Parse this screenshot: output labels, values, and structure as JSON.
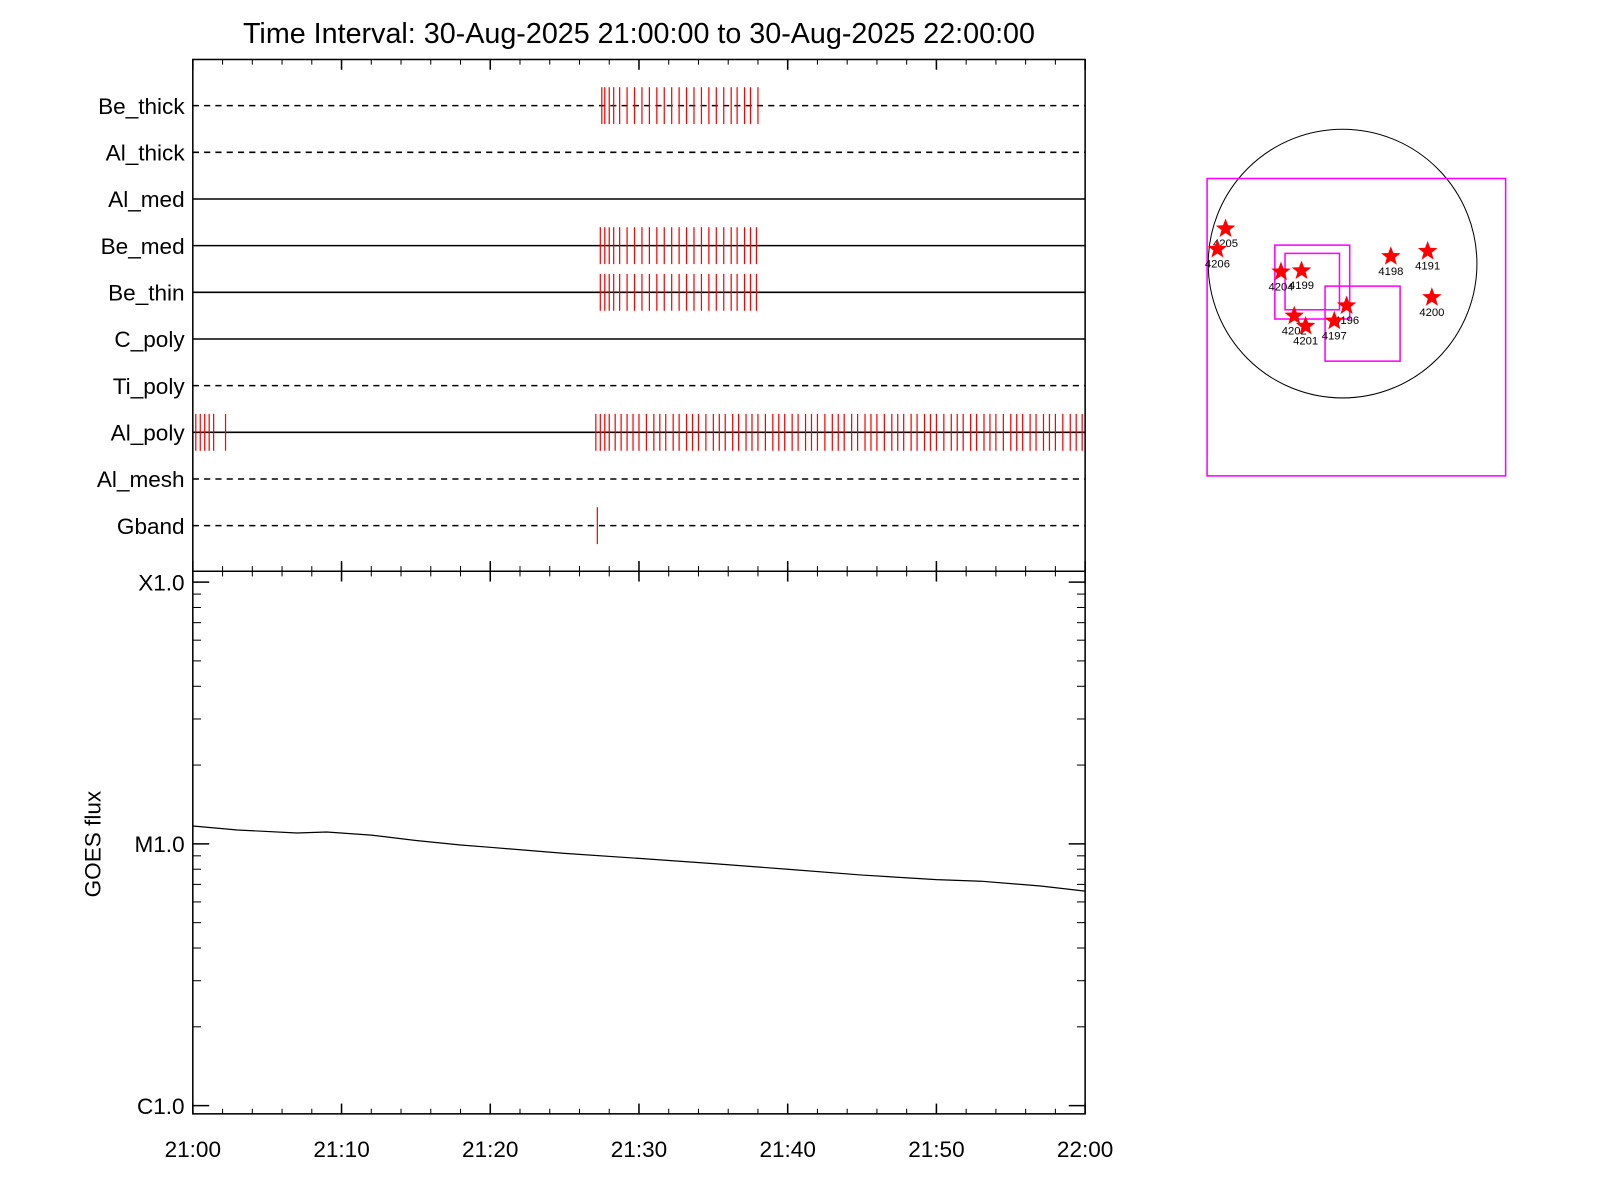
{
  "chart_data": [
    {
      "type": "timeline",
      "title": "Time Interval: 30-Aug-2025 21:00:00 to 30-Aug-2025 22:00:00",
      "categories": [
        "Be_thick",
        "Al_thick",
        "Al_med",
        "Be_med",
        "Be_thin",
        "C_poly",
        "Ti_poly",
        "Al_poly",
        "Al_mesh",
        "Gband"
      ],
      "line_styles": [
        "dashed",
        "dashed",
        "solid",
        "solid",
        "solid",
        "solid",
        "dashed",
        "solid",
        "dashed",
        "dashed"
      ],
      "color": "#ff0000",
      "events": [
        [
          27.5,
          27.7,
          28.0,
          28.3,
          28.7,
          29.2,
          29.7,
          30.2,
          30.7,
          31.2,
          31.7,
          32.2,
          32.7,
          33.2,
          33.7,
          34.2,
          34.7,
          35.2,
          35.7,
          36.2,
          36.6,
          37.1,
          37.5,
          38.0
        ],
        [],
        [],
        [
          27.4,
          27.7,
          28.0,
          28.3,
          28.7,
          29.2,
          29.7,
          30.2,
          30.7,
          31.2,
          31.7,
          32.2,
          32.7,
          33.2,
          33.7,
          34.2,
          34.7,
          35.2,
          35.7,
          36.2,
          36.6,
          37.1,
          37.5,
          37.9
        ],
        [
          27.4,
          27.7,
          28.0,
          28.3,
          28.7,
          29.2,
          29.7,
          30.2,
          30.7,
          31.2,
          31.7,
          32.2,
          32.7,
          33.2,
          33.7,
          34.2,
          34.7,
          35.2,
          35.7,
          36.2,
          36.6,
          37.1,
          37.5,
          37.9
        ],
        [],
        [],
        [
          0.2,
          0.5,
          0.8,
          1.1,
          1.4,
          2.2,
          27.1,
          27.4,
          27.7,
          28.0,
          28.4,
          28.8,
          29.2,
          29.6,
          30.0,
          30.5,
          31.0,
          31.4,
          31.8,
          32.3,
          32.7,
          33.2,
          33.6,
          34.0,
          34.5,
          35.0,
          35.4,
          35.8,
          36.3,
          36.7,
          37.2,
          37.6,
          38.0,
          38.5,
          39.0,
          39.4,
          39.8,
          40.3,
          40.7,
          41.2,
          41.6,
          42.0,
          42.5,
          43.0,
          43.4,
          43.8,
          44.3,
          44.7,
          45.2,
          45.6,
          46.0,
          46.5,
          47.0,
          47.4,
          47.8,
          48.3,
          48.7,
          49.2,
          49.6,
          50.0,
          50.5,
          51.0,
          51.4,
          51.8,
          52.3,
          52.7,
          53.2,
          53.6,
          54.0,
          54.5,
          55.0,
          55.4,
          55.8,
          56.3,
          56.7,
          57.2,
          57.6,
          58.0,
          58.5,
          59.0,
          59.4,
          59.8
        ],
        [],
        [
          27.2
        ]
      ]
    },
    {
      "type": "line",
      "ylabel": "GOES flux",
      "x": [
        0,
        3,
        7,
        9,
        12,
        15,
        18,
        20,
        25,
        30,
        35,
        40,
        45,
        50,
        53,
        57,
        60
      ],
      "values": [
        1.17e-05,
        1.13e-05,
        1.1e-05,
        1.11e-05,
        1.08e-05,
        1.03e-05,
        9.9e-06,
        9.7e-06,
        9.2e-06,
        8.8e-06,
        8.4e-06,
        8e-06,
        7.6e-06,
        7.3e-06,
        7.2e-06,
        6.9e-06,
        6.6e-06
      ],
      "color": "#000000",
      "log_y": true,
      "ylim": [
        9.3e-07,
        0.00011
      ],
      "yticks": [
        {
          "value": 1e-06,
          "label": "C1.0"
        },
        {
          "value": 1e-05,
          "label": "M1.0"
        },
        {
          "value": 0.0001,
          "label": "X1.0"
        }
      ],
      "xlim": [
        0,
        60
      ],
      "xticks": [
        {
          "value": 0,
          "label": "21:00"
        },
        {
          "value": 10,
          "label": "21:10"
        },
        {
          "value": 20,
          "label": "21:20"
        },
        {
          "value": 30,
          "label": "21:30"
        },
        {
          "value": 40,
          "label": "21:40"
        },
        {
          "value": 50,
          "label": "21:50"
        },
        {
          "value": 60,
          "label": "22:00"
        }
      ]
    },
    {
      "type": "map",
      "points": {
        "labels": [
          "4205",
          "4206",
          "4204",
          "4199",
          "4198",
          "4191",
          "4200",
          "4196",
          "4202",
          "4201",
          "4197"
        ],
        "x": [
          -836,
          -894,
          -440,
          -293,
          345,
          608,
          638,
          29,
          -345,
          -264,
          -59
        ],
        "y": [
          249,
          103,
          -59,
          -51,
          51,
          88,
          -242,
          -301,
          -374,
          -447,
          -410
        ],
        "color": "#ff0000"
      },
      "boxes": [
        {
          "x": [
            -968,
            1165
          ],
          "y": [
            608,
            -1517
          ]
        },
        {
          "x": [
            -484,
            51
          ],
          "y": [
            132,
            -396
          ]
        },
        {
          "x": [
            -411,
            -22
          ],
          "y": [
            73,
            -330
          ]
        },
        {
          "x": [
            -125,
            411
          ],
          "y": [
            -161,
            -697
          ]
        }
      ],
      "box_color": "#ff00ff"
    }
  ]
}
